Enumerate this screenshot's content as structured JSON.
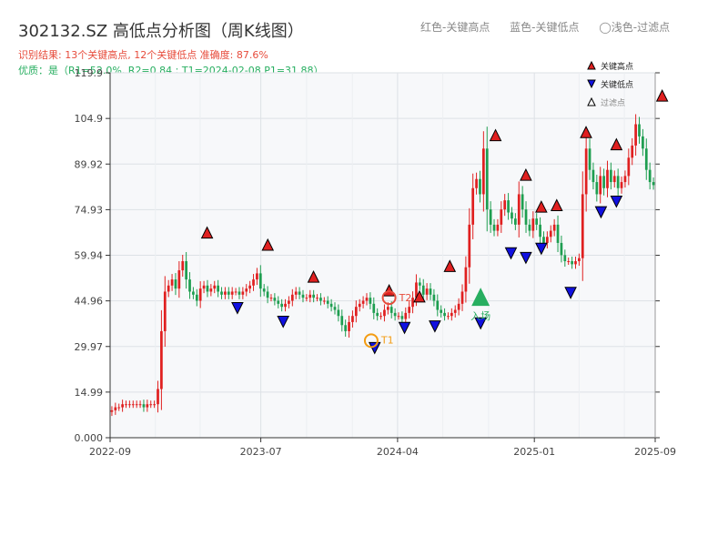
{
  "header": {
    "title": "302132.SZ 高低点分析图（周K线图）",
    "result_line": "识别结果: 13个关键高点, 12个关键低点 准确度: 87.6%",
    "quality_line": "优质：是（R1=52.0%, R2=0.84 ; T1=2024-02-08 P1=31.88）"
  },
  "top_legend": {
    "red": "红色-关键高点",
    "blue": "蓝色-关键低点",
    "grey": "◯浅色-过滤点"
  },
  "colors": {
    "up": "#e02020",
    "down": "#1e9e50",
    "high_marker": "#e02020",
    "low_marker": "#1010e0",
    "t1_marker": "#f39c12",
    "entry_marker": "#27ae60",
    "plot_bg": "#f7f8fa",
    "grid": "#dde1e6"
  },
  "chart_data": {
    "type": "candlestick",
    "yticks": [
      "0.000",
      "14.99",
      "29.97",
      "44.96",
      "59.94",
      "74.93",
      "89.92",
      "104.9",
      "119.9"
    ],
    "xticks": [
      "2022-09",
      "2023-07",
      "2024-04",
      "2025-01",
      "2025-09"
    ],
    "ylim": [
      0,
      119.9
    ],
    "legend": [
      "关键高点",
      "关键低点",
      "过滤点"
    ],
    "annotations": {
      "t1": "T1",
      "t2": "T2",
      "entry": "入场"
    },
    "key_highs": [
      {
        "date": "2023-03",
        "price": 65.0
      },
      {
        "date": "2023-07",
        "price": 61.0
      },
      {
        "date": "2023-10",
        "price": 50.5
      },
      {
        "date": "2024-03",
        "price": 46.0
      },
      {
        "date": "2024-05",
        "price": 44.0
      },
      {
        "date": "2024-07",
        "price": 54.0
      },
      {
        "date": "2024-10",
        "price": 97.0
      },
      {
        "date": "2024-12",
        "price": 84.0
      },
      {
        "date": "2025-01",
        "price": 73.5
      },
      {
        "date": "2025-02",
        "price": 74.0
      },
      {
        "date": "2025-04",
        "price": 98.0
      },
      {
        "date": "2025-06",
        "price": 94.0
      },
      {
        "date": "2025-09",
        "price": 110.0
      }
    ],
    "key_lows": [
      {
        "date": "2023-05",
        "price": 45.0
      },
      {
        "date": "2023-08",
        "price": 40.5
      },
      {
        "date": "2024-02",
        "price": 31.88
      },
      {
        "date": "2024-04",
        "price": 38.5
      },
      {
        "date": "2024-06",
        "price": 39.0
      },
      {
        "date": "2024-09",
        "price": 40.0
      },
      {
        "date": "2024-11",
        "price": 63.0
      },
      {
        "date": "2024-12",
        "price": 61.5
      },
      {
        "date": "2025-01",
        "price": 64.5
      },
      {
        "date": "2025-03",
        "price": 50.0
      },
      {
        "date": "2025-05",
        "price": 76.5
      },
      {
        "date": "2025-06",
        "price": 80.0
      }
    ],
    "special_points": {
      "t1": {
        "date": "2024-02-08",
        "price": 31.88
      },
      "t2": {
        "date": "2024-03",
        "price": 46.0
      },
      "entry": {
        "date": "2024-09",
        "price": 46.0
      }
    },
    "close_series": [
      9,
      10,
      10,
      11,
      11,
      11,
      11,
      11,
      11,
      10,
      11,
      11,
      11,
      16,
      35,
      48,
      50,
      52,
      49,
      55,
      58,
      52,
      48,
      47,
      45,
      49,
      50,
      48,
      49,
      50,
      48,
      47,
      48,
      47,
      48,
      48,
      47,
      48,
      49,
      50,
      52,
      54,
      49,
      48,
      46,
      46,
      45,
      44,
      43,
      44,
      45,
      47,
      48,
      47,
      46,
      46,
      47,
      46,
      46,
      45,
      45,
      44,
      43,
      42,
      40,
      37,
      35,
      38,
      40,
      43,
      44,
      45,
      46,
      44,
      41,
      40,
      40,
      42,
      43,
      41,
      40,
      40,
      39,
      41,
      43,
      46,
      51,
      50,
      47,
      49,
      47,
      45,
      42,
      41,
      40,
      40,
      41,
      42,
      44,
      48,
      56,
      70,
      82,
      85,
      80,
      95,
      75,
      70,
      68,
      70,
      75,
      78,
      74,
      72,
      70,
      80,
      75,
      70,
      68,
      72,
      70,
      66,
      64,
      66,
      68,
      70,
      64,
      60,
      58,
      58,
      57,
      58,
      59,
      80,
      95,
      88,
      84,
      80,
      86,
      82,
      88,
      84,
      86,
      82,
      84,
      86,
      92,
      96,
      103,
      99,
      95,
      88,
      84,
      83
    ]
  }
}
